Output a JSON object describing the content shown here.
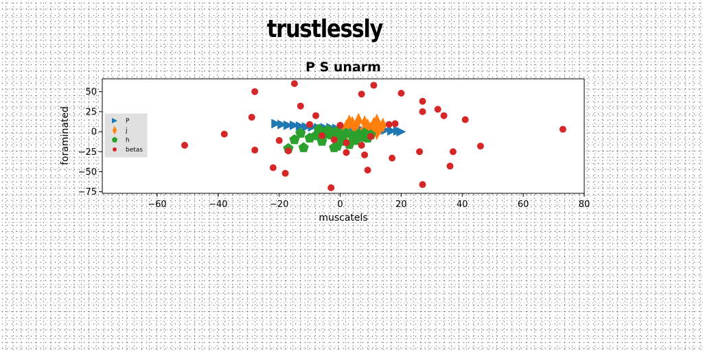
{
  "suptitle": "trustlessly",
  "chart_data": {
    "type": "scatter",
    "title": "P S unarm",
    "xlabel": "muscatels",
    "ylabel": "foraminated",
    "xlim": [
      -78,
      80
    ],
    "ylim": [
      -77,
      66
    ],
    "xticks": [
      -60,
      -40,
      -20,
      0,
      20,
      40,
      60,
      80
    ],
    "yticks": [
      -75,
      -50,
      -25,
      0,
      25,
      50
    ],
    "grid": false,
    "legend_position": "center-left",
    "series": [
      {
        "name": "P",
        "marker": "triangle-right",
        "color": "#1f77b4",
        "points": [
          [
            -21,
            10
          ],
          [
            -19,
            9
          ],
          [
            -17,
            8
          ],
          [
            -15,
            8
          ],
          [
            -13,
            7
          ],
          [
            -11,
            6
          ],
          [
            -9,
            6
          ],
          [
            -7,
            5
          ],
          [
            -5,
            5
          ],
          [
            -3,
            5
          ],
          [
            -1,
            4
          ],
          [
            1,
            4
          ],
          [
            3,
            4
          ],
          [
            5,
            3
          ],
          [
            7,
            3
          ],
          [
            9,
            3
          ],
          [
            11,
            2
          ],
          [
            13,
            2
          ],
          [
            15,
            2
          ],
          [
            17,
            1
          ],
          [
            19,
            1
          ],
          [
            20,
            0
          ]
        ]
      },
      {
        "name": "j",
        "marker": "thin-diamond",
        "color": "#ff7f0e",
        "points": [
          [
            0,
            2
          ],
          [
            2,
            6
          ],
          [
            3,
            12
          ],
          [
            4,
            10
          ],
          [
            5,
            5
          ],
          [
            6,
            14
          ],
          [
            7,
            -2
          ],
          [
            8,
            11
          ],
          [
            9,
            7
          ],
          [
            10,
            3
          ],
          [
            11,
            9
          ],
          [
            12,
            13
          ],
          [
            13,
            5
          ],
          [
            14,
            8
          ],
          [
            2,
            -3
          ],
          [
            5,
            1
          ],
          [
            9,
            -4
          ],
          [
            12,
            -1
          ]
        ]
      },
      {
        "name": "h",
        "marker": "pentagon",
        "color": "#2ca02c",
        "points": [
          [
            -17,
            -21
          ],
          [
            -15,
            -10
          ],
          [
            -13,
            -2
          ],
          [
            -12,
            -20
          ],
          [
            -10,
            -8
          ],
          [
            -8,
            -5
          ],
          [
            -7,
            3
          ],
          [
            -6,
            -12
          ],
          [
            -5,
            -3
          ],
          [
            -4,
            2
          ],
          [
            -3,
            -4
          ],
          [
            -2,
            -20
          ],
          [
            -1,
            1
          ],
          [
            0,
            -6
          ],
          [
            1,
            -12
          ],
          [
            2,
            -2
          ],
          [
            3,
            -16
          ],
          [
            4,
            -5
          ],
          [
            5,
            -11
          ],
          [
            6,
            -3
          ],
          [
            7,
            -7
          ],
          [
            8,
            -2
          ],
          [
            9,
            -8
          ],
          [
            10,
            -4
          ],
          [
            -1,
            -18
          ]
        ]
      },
      {
        "name": "betas",
        "marker": "circle",
        "color": "#d62728",
        "points": [
          [
            -51,
            -17
          ],
          [
            -38,
            -3
          ],
          [
            -29,
            18
          ],
          [
            -28,
            50
          ],
          [
            -28,
            -23
          ],
          [
            -22,
            -45
          ],
          [
            -20,
            -11
          ],
          [
            -18,
            -52
          ],
          [
            -17,
            -24
          ],
          [
            -15,
            60
          ],
          [
            -13,
            32
          ],
          [
            -10,
            9
          ],
          [
            -8,
            20
          ],
          [
            -6,
            -5
          ],
          [
            -3,
            -70
          ],
          [
            -2,
            -10
          ],
          [
            0,
            8
          ],
          [
            2,
            -14
          ],
          [
            2,
            -26
          ],
          [
            7,
            47
          ],
          [
            7,
            -17
          ],
          [
            8,
            -29
          ],
          [
            9,
            -48
          ],
          [
            10,
            -6
          ],
          [
            11,
            58
          ],
          [
            16,
            9
          ],
          [
            17,
            -33
          ],
          [
            18,
            10
          ],
          [
            20,
            48
          ],
          [
            26,
            -25
          ],
          [
            27,
            38
          ],
          [
            27,
            25
          ],
          [
            27,
            -66
          ],
          [
            32,
            28
          ],
          [
            34,
            20
          ],
          [
            36,
            -43
          ],
          [
            37,
            -25
          ],
          [
            41,
            15
          ],
          [
            46,
            -18
          ],
          [
            73,
            3
          ]
        ]
      }
    ]
  }
}
